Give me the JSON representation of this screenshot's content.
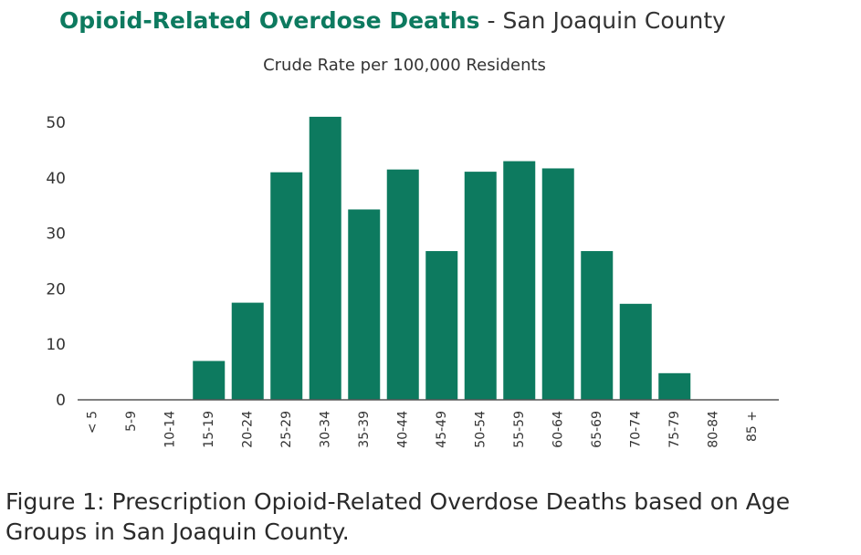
{
  "chart_data": {
    "type": "bar",
    "title": "Opioid-Related Overdose Deaths",
    "title_suffix": " - San Joaquin County",
    "subtitle": "Crude Rate per 100,000 Residents",
    "xlabel": "",
    "ylabel": "",
    "categories": [
      "< 5",
      "5-9",
      "10-14",
      "15-19",
      "20-24",
      "25-29",
      "30-34",
      "35-39",
      "40-44",
      "45-49",
      "50-54",
      "55-59",
      "60-64",
      "65-69",
      "70-74",
      "75-79",
      "80-84",
      "85 +"
    ],
    "values": [
      0,
      0,
      0,
      7,
      17.5,
      41,
      51,
      34.3,
      41.5,
      26.8,
      41.1,
      43,
      41.7,
      26.8,
      17.3,
      4.8,
      0,
      0
    ],
    "ylim": [
      0,
      50
    ],
    "yticks": [
      0,
      10,
      20,
      30,
      40,
      50
    ],
    "grid": false,
    "legend": "none",
    "colors": {
      "bar": "#0d7a5f",
      "title": "#0d7a5f",
      "text": "#333333",
      "axis": "#555555"
    }
  },
  "caption": "Figure 1: Prescription Opioid-Related Overdose Deaths based on Age Groups in San Joaquin County."
}
